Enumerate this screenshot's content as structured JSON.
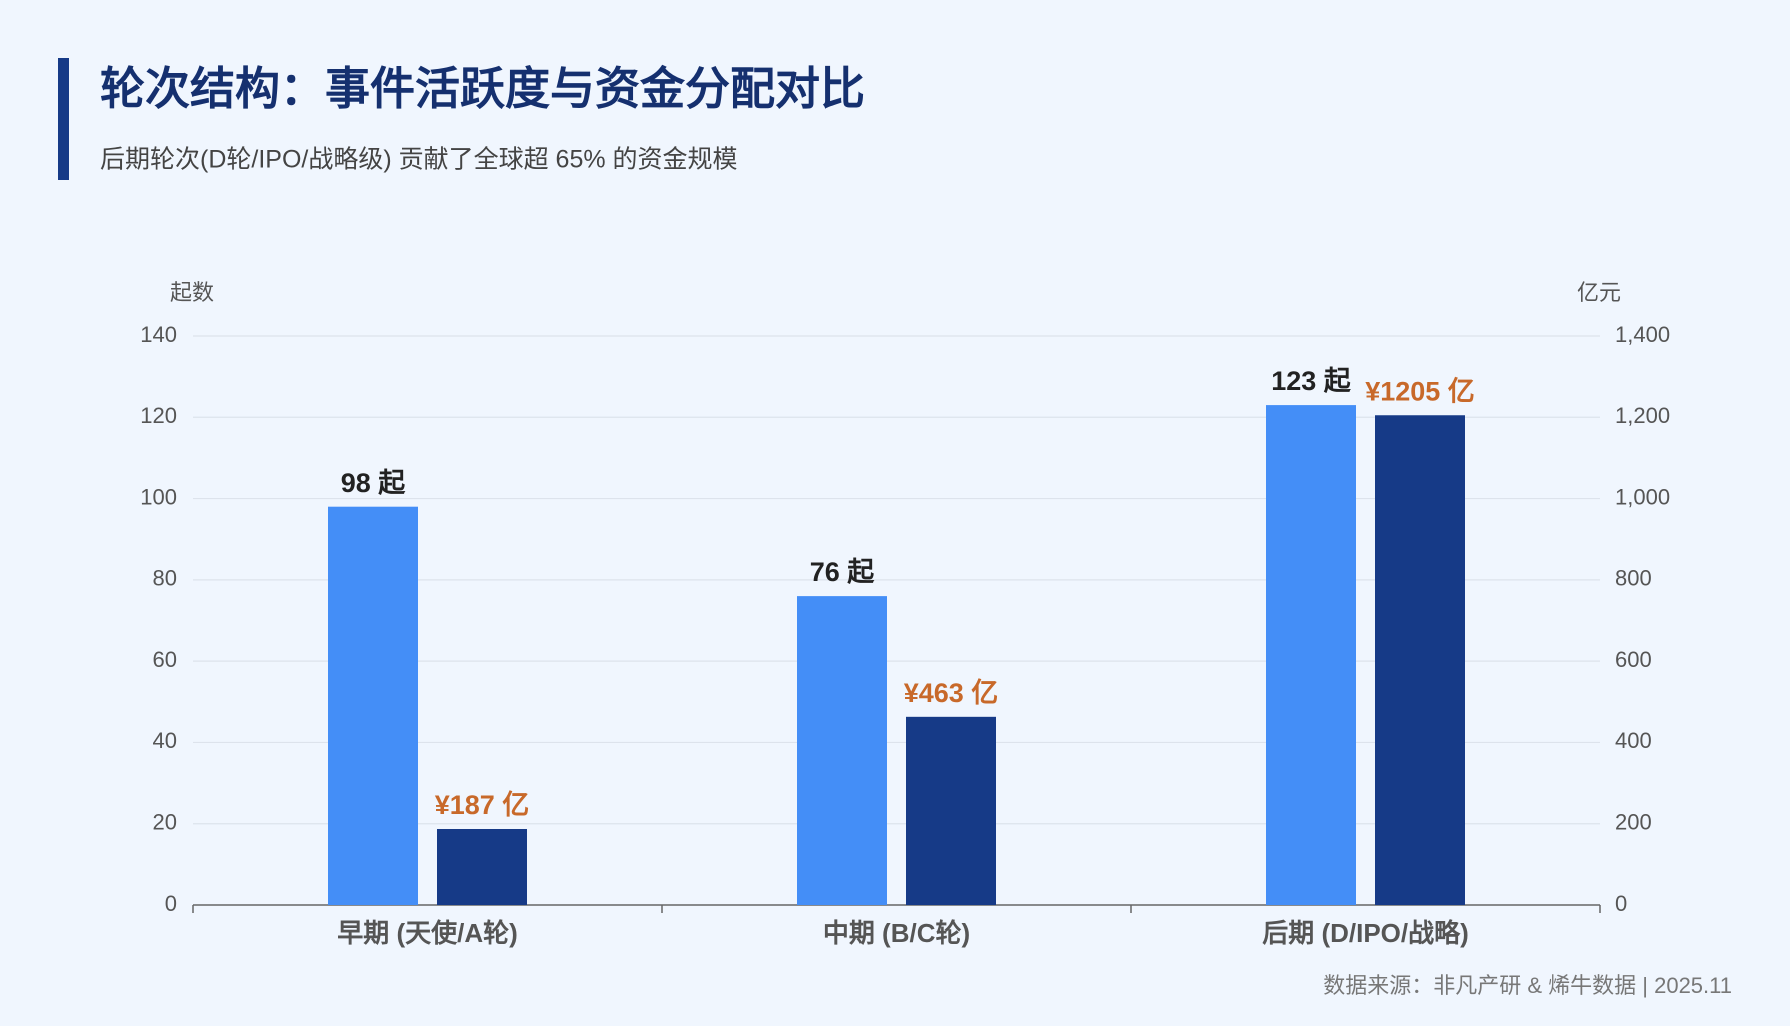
{
  "chart_data": {
    "type": "bar",
    "title": "轮次结构：事件活跃度与资金分配对比",
    "subtitle": "后期轮次(D轮/IPO/战略级) 贡献了全球超 65% 的资金规模",
    "source": "数据来源：非凡产研 & 烯牛数据 | 2025.11",
    "ylabel": "起数",
    "y2label": "亿元",
    "categories": [
      "早期 (天使/A轮)",
      "中期 (B/C轮)",
      "后期 (D/IPO/战略)"
    ],
    "series": [
      {
        "color": "#448ef7",
        "label_color": "#222222",
        "values": [
          98,
          76,
          123
        ],
        "value_labels": [
          "98 起",
          "76 起",
          "123 起"
        ]
      },
      {
        "color": "#163a87",
        "label_color": "#c8692a",
        "axis": "y2",
        "values": [
          187,
          463,
          1205
        ],
        "value_labels": [
          "¥187 亿",
          "¥463 亿",
          "¥1205 亿"
        ]
      }
    ],
    "ylim": [
      0,
      140
    ],
    "yticks": [
      0,
      20,
      40,
      60,
      80,
      100,
      120,
      140
    ],
    "y2lim": [
      0,
      1400
    ],
    "y2ticks": [
      0,
      200,
      400,
      600,
      800,
      {
        "value": 1000,
        "label": "1,000"
      },
      {
        "value": 1200,
        "label": "1,200"
      },
      {
        "value": 1400,
        "label": "1,400"
      }
    ],
    "grid": true
  }
}
